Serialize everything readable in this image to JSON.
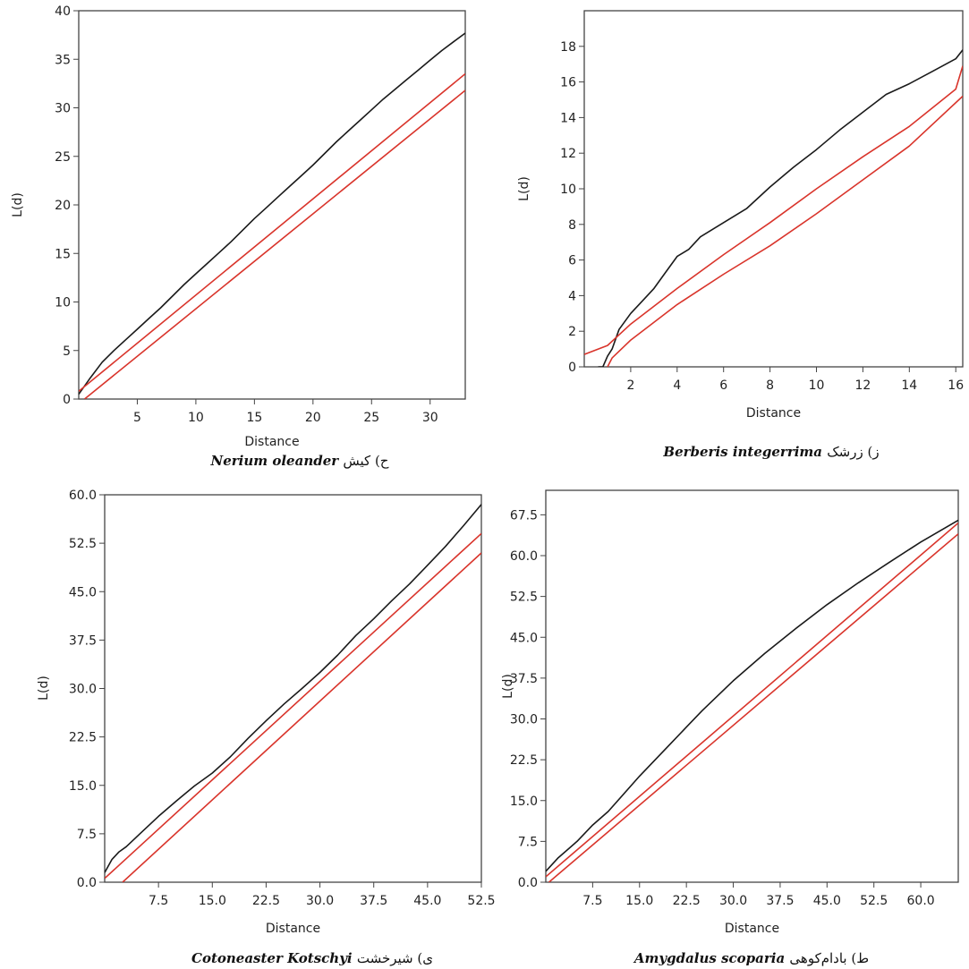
{
  "colors": {
    "observed": "#1a1a1a",
    "envelope": "#d9342b",
    "frame": "#444444"
  },
  "chart_data": [
    {
      "type": "line",
      "caption_prefix": "ح) کیش",
      "caption_species": "Nerium oleander",
      "xlabel": "Distance",
      "ylabel": "L(d)",
      "xlim": [
        0,
        33
      ],
      "ylim": [
        0,
        40
      ],
      "xticks": [
        "5",
        "10",
        "15",
        "20",
        "25",
        "30"
      ],
      "xtick_values": [
        5,
        10,
        15,
        20,
        25,
        30
      ],
      "yticks": [
        "0",
        "5",
        "10",
        "15",
        "20",
        "25",
        "30",
        "35",
        "40"
      ],
      "ytick_values": [
        0,
        5,
        10,
        15,
        20,
        25,
        30,
        35,
        40
      ],
      "series": [
        {
          "role": "observed",
          "x": [
            0,
            1,
            2,
            3,
            4,
            5,
            6,
            7,
            8,
            9,
            10,
            11,
            12,
            13,
            14,
            15,
            16,
            17,
            18,
            19,
            20,
            21,
            22,
            23,
            24,
            25,
            26,
            27,
            28,
            29,
            30,
            31,
            32,
            33
          ],
          "y": [
            0.5,
            2.2,
            3.8,
            5.0,
            6.1,
            7.2,
            8.3,
            9.4,
            10.6,
            11.8,
            12.9,
            14.0,
            15.1,
            16.2,
            17.4,
            18.6,
            19.7,
            20.8,
            21.9,
            23.0,
            24.1,
            25.3,
            26.5,
            27.6,
            28.7,
            29.8,
            30.9,
            31.9,
            32.9,
            33.9,
            34.9,
            35.9,
            36.8,
            37.7
          ]
        },
        {
          "role": "envelope-upper",
          "x": [
            0,
            33
          ],
          "y": [
            0.8,
            33.5
          ]
        },
        {
          "role": "envelope-lower",
          "x": [
            0.5,
            33
          ],
          "y": [
            0,
            31.8
          ]
        }
      ]
    },
    {
      "type": "line",
      "caption_prefix": "ز) زرشک",
      "caption_species": "Berberis integerrima",
      "xlabel": "Distance",
      "ylabel": "L(d)",
      "xlim": [
        0,
        16.3
      ],
      "ylim": [
        0,
        20
      ],
      "xticks": [
        "2",
        "4",
        "6",
        "8",
        "10",
        "12",
        "14",
        "16"
      ],
      "xtick_values": [
        2,
        4,
        6,
        8,
        10,
        12,
        14,
        16
      ],
      "yticks": [
        "0",
        "2",
        "4",
        "6",
        "8",
        "10",
        "12",
        "14",
        "16",
        "18"
      ],
      "ytick_values": [
        0,
        2,
        4,
        6,
        8,
        10,
        12,
        14,
        16,
        18
      ],
      "series": [
        {
          "role": "observed",
          "x": [
            0.6,
            0.8,
            1.0,
            1.2,
            1.5,
            2,
            2.5,
            3,
            3.5,
            4,
            4.5,
            5,
            6,
            7,
            8,
            9,
            10,
            11,
            12,
            13,
            14,
            15,
            16,
            16.3
          ],
          "y": [
            0,
            0,
            0.6,
            1.0,
            2.1,
            3.0,
            3.7,
            4.4,
            5.3,
            6.2,
            6.6,
            7.3,
            8.1,
            8.9,
            10.1,
            11.2,
            12.2,
            13.3,
            14.3,
            15.3,
            15.9,
            16.6,
            17.3,
            17.8
          ]
        },
        {
          "role": "envelope-upper",
          "x": [
            0,
            1,
            2,
            4,
            6,
            8,
            10,
            12,
            14,
            16,
            16.3
          ],
          "y": [
            0.7,
            1.2,
            2.4,
            4.4,
            6.3,
            8.1,
            10.0,
            11.8,
            13.5,
            15.6,
            16.9
          ]
        },
        {
          "role": "envelope-lower",
          "x": [
            1.0,
            1.2,
            2,
            4,
            6,
            8,
            10,
            12,
            14,
            16.3
          ],
          "y": [
            0,
            0.5,
            1.5,
            3.5,
            5.2,
            6.8,
            8.6,
            10.5,
            12.4,
            15.2
          ]
        }
      ]
    },
    {
      "type": "line",
      "caption_prefix": "ی) شیرخشت",
      "caption_species": "Cotoneaster Kotschyi",
      "xlabel": "Distance",
      "ylabel": "L(d)",
      "xlim": [
        0,
        52.5
      ],
      "ylim": [
        0,
        60
      ],
      "xticks": [
        "7.5",
        "15.0",
        "22.5",
        "30.0",
        "37.5",
        "45.0",
        "52.5"
      ],
      "xtick_values": [
        7.5,
        15,
        22.5,
        30,
        37.5,
        45,
        52.5
      ],
      "yticks": [
        "0.0",
        "7.5",
        "15.0",
        "22.5",
        "30.0",
        "37.5",
        "45.0",
        "52.5",
        "60.0"
      ],
      "ytick_values": [
        0,
        7.5,
        15,
        22.5,
        30,
        37.5,
        45,
        52.5,
        60
      ],
      "series": [
        {
          "role": "observed",
          "x": [
            0,
            1,
            2,
            3,
            5,
            7.5,
            10,
            12.5,
            15,
            17.5,
            20,
            22.5,
            25,
            27.5,
            30,
            32.5,
            35,
            37.5,
            40,
            42.5,
            45,
            47.5,
            50,
            52.5
          ],
          "y": [
            1.5,
            3.5,
            4.7,
            5.5,
            7.6,
            10.2,
            12.6,
            14.9,
            16.9,
            19.4,
            22.3,
            25.0,
            27.6,
            30.0,
            32.5,
            35.2,
            38.2,
            40.8,
            43.6,
            46.2,
            49.1,
            52.0,
            55.2,
            58.5
          ]
        },
        {
          "role": "envelope-upper",
          "x": [
            0,
            52.5
          ],
          "y": [
            0.6,
            54.0
          ]
        },
        {
          "role": "envelope-lower",
          "x": [
            2.5,
            52.5
          ],
          "y": [
            0,
            51.0
          ]
        }
      ]
    },
    {
      "type": "line",
      "caption_prefix": "ط) بادام‌کوهی",
      "caption_species": "Amygdalus scoparia",
      "xlabel": "Distance",
      "ylabel": "L(d)",
      "xlim": [
        0,
        66
      ],
      "ylim": [
        0,
        72
      ],
      "xticks": [
        "7.5",
        "15.0",
        "22.5",
        "30.0",
        "37.5",
        "45.0",
        "52.5",
        "60.0"
      ],
      "xtick_values": [
        7.5,
        15,
        22.5,
        30,
        37.5,
        45,
        52.5,
        60
      ],
      "yticks": [
        "0.0",
        "7.5",
        "15.0",
        "22.5",
        "30.0",
        "37.5",
        "45.0",
        "52.5",
        "60.0",
        "67.5"
      ],
      "ytick_values": [
        0,
        7.5,
        15,
        22.5,
        30,
        37.5,
        45,
        52.5,
        60,
        67.5
      ],
      "series": [
        {
          "role": "observed",
          "x": [
            0,
            2,
            5,
            7.5,
            10,
            15,
            20,
            22.5,
            25,
            30,
            35,
            40,
            45,
            50,
            55,
            60,
            66
          ],
          "y": [
            2.0,
            4.5,
            7.5,
            10.5,
            13.0,
            19.5,
            25.5,
            28.5,
            31.5,
            37.0,
            42.0,
            46.6,
            51.0,
            55.0,
            58.8,
            62.5,
            66.5
          ]
        },
        {
          "role": "envelope-upper",
          "x": [
            0,
            66
          ],
          "y": [
            1.0,
            66.0
          ]
        },
        {
          "role": "envelope-lower",
          "x": [
            0.5,
            66
          ],
          "y": [
            0,
            64.0
          ]
        }
      ]
    }
  ]
}
